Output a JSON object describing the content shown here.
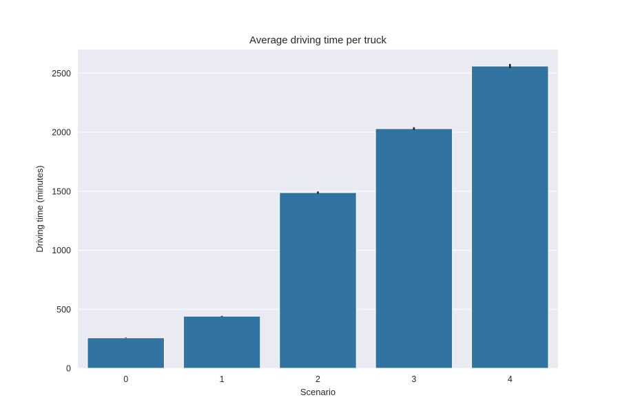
{
  "chart_data": {
    "type": "bar",
    "title": "Average driving time per truck",
    "xlabel": "Scenario",
    "ylabel": "Driving time (minutes)",
    "categories": [
      "0",
      "1",
      "2",
      "3",
      "4"
    ],
    "values": [
      258,
      441,
      1488,
      2030,
      2560
    ],
    "error": [
      2,
      3,
      10,
      12,
      18
    ],
    "ylim": [
      0,
      2700
    ],
    "yticks": [
      0,
      500,
      1000,
      1500,
      2000,
      2500
    ],
    "grid": true,
    "legend": "none",
    "colors": {
      "bar": "#3274a1",
      "plot_background": "#eaeaf2",
      "grid": "#ffffff",
      "error_bar": "#262626",
      "text": "#262626"
    }
  }
}
